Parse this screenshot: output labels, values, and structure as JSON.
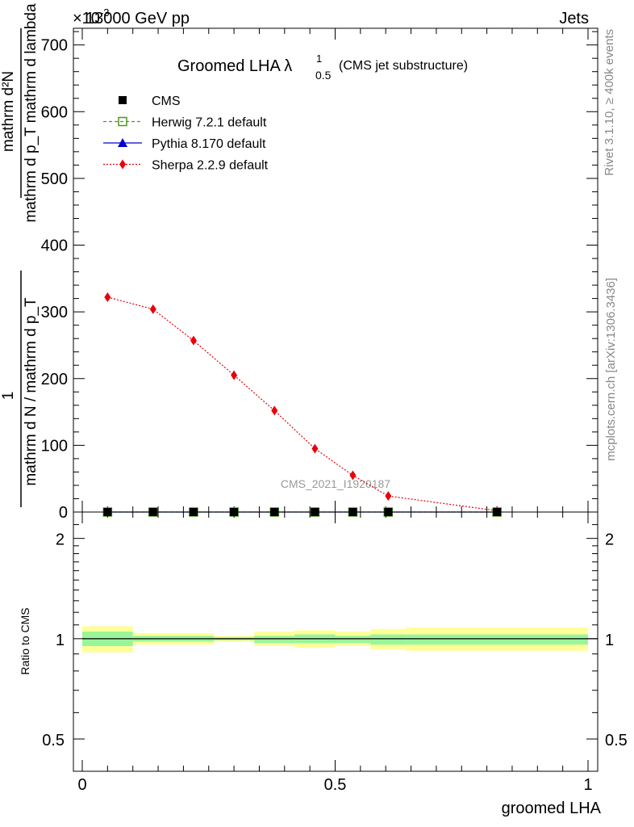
{
  "header": {
    "energy_label": "13000 GeV pp",
    "exponent_label": "×10",
    "exponent_power": "-3",
    "process_label": "Jets"
  },
  "side_labels": {
    "rivet": "Rivet 3.1.10, ≥ 400k events",
    "mcplots": "mcplots.cern.ch [arXiv:1306.3436]"
  },
  "watermark": "CMS_2021_I1920187",
  "chart_data": [
    {
      "type": "line",
      "title": "Groomed LHA",
      "title_symbol": "λ",
      "title_sup": "1",
      "title_sub": "0.5",
      "subtitle": "(CMS jet substructure)",
      "ylabel": {
        "numerator": "mathrm d²N",
        "denominator": "mathrm d p_T mathrm d lambda",
        "prefix_numerator": "1",
        "prefix_denominator": "mathrm d N / mathrm d p_T"
      },
      "xlim": [
        -0.02,
        1.02
      ],
      "ylim": [
        0,
        725
      ],
      "yticks": [
        0,
        100,
        200,
        300,
        400,
        500,
        600,
        700
      ],
      "ytick_labels": [
        "0",
        "100",
        "200",
        "300",
        "400",
        "500",
        "600",
        "700"
      ],
      "legend_position": "top-left",
      "series": [
        {
          "name": "CMS",
          "marker": "square",
          "color": "#000000",
          "x": [
            0.05,
            0.14,
            0.22,
            0.3,
            0.38,
            0.46,
            0.535,
            0.605,
            0.82
          ],
          "y": [
            0,
            0,
            0,
            0,
            0,
            0,
            0,
            0,
            0
          ]
        },
        {
          "name": "Herwig 7.2.1 default",
          "marker": "open-square",
          "color": "#4a9a1a",
          "x": [
            0.05,
            0.14,
            0.22,
            0.3,
            0.38,
            0.46,
            0.535,
            0.605,
            0.82
          ],
          "y": [
            0,
            0,
            0,
            0,
            0,
            0,
            0,
            0,
            0
          ]
        },
        {
          "name": "Pythia 8.170 default",
          "marker": "triangle",
          "color": "#0000cc",
          "x": [
            0.05,
            0.14,
            0.22,
            0.3,
            0.38,
            0.46,
            0.535,
            0.605,
            0.82
          ],
          "y": [
            0,
            0,
            0,
            0,
            0,
            0,
            0,
            0,
            0
          ]
        },
        {
          "name": "Sherpa 2.2.9 default",
          "marker": "diamond",
          "color": "#e8000b",
          "x": [
            0.05,
            0.14,
            0.22,
            0.3,
            0.38,
            0.46,
            0.535,
            0.605,
            0.82
          ],
          "y": [
            322,
            304,
            257,
            205,
            152,
            95,
            55,
            24,
            2
          ]
        }
      ]
    },
    {
      "type": "area",
      "ylabel": "Ratio to CMS",
      "xlabel": "groomed LHA",
      "xlim": [
        -0.02,
        1.02
      ],
      "ylim": [
        0.4,
        2.4
      ],
      "scale": "log",
      "yticks": [
        0.5,
        1,
        2
      ],
      "ytick_labels": [
        "0.5",
        "1",
        "2"
      ],
      "xticks": [
        0,
        0.5,
        1
      ],
      "xtick_labels": [
        "0",
        "0.5",
        "1"
      ],
      "bins": [
        {
          "lo": 0.0,
          "hi": 0.1,
          "stat_lo": 0.95,
          "stat_hi": 1.05,
          "tot_lo": 0.91,
          "tot_hi": 1.09
        },
        {
          "lo": 0.1,
          "hi": 0.26,
          "stat_lo": 0.98,
          "stat_hi": 1.02,
          "tot_lo": 0.96,
          "tot_hi": 1.04
        },
        {
          "lo": 0.26,
          "hi": 0.34,
          "stat_lo": 0.99,
          "stat_hi": 1.01,
          "tot_lo": 0.98,
          "tot_hi": 1.02
        },
        {
          "lo": 0.34,
          "hi": 0.42,
          "stat_lo": 0.97,
          "stat_hi": 1.02,
          "tot_lo": 0.95,
          "tot_hi": 1.05
        },
        {
          "lo": 0.42,
          "hi": 0.5,
          "stat_lo": 0.97,
          "stat_hi": 1.03,
          "tot_lo": 0.94,
          "tot_hi": 1.06
        },
        {
          "lo": 0.5,
          "hi": 0.57,
          "stat_lo": 0.97,
          "stat_hi": 1.02,
          "tot_lo": 0.95,
          "tot_hi": 1.05
        },
        {
          "lo": 0.57,
          "hi": 0.64,
          "stat_lo": 0.96,
          "stat_hi": 1.03,
          "tot_lo": 0.93,
          "tot_hi": 1.07
        },
        {
          "lo": 0.64,
          "hi": 1.0,
          "stat_lo": 0.96,
          "stat_hi": 1.03,
          "tot_lo": 0.92,
          "tot_hi": 1.08
        }
      ],
      "reference_value": 1
    }
  ]
}
